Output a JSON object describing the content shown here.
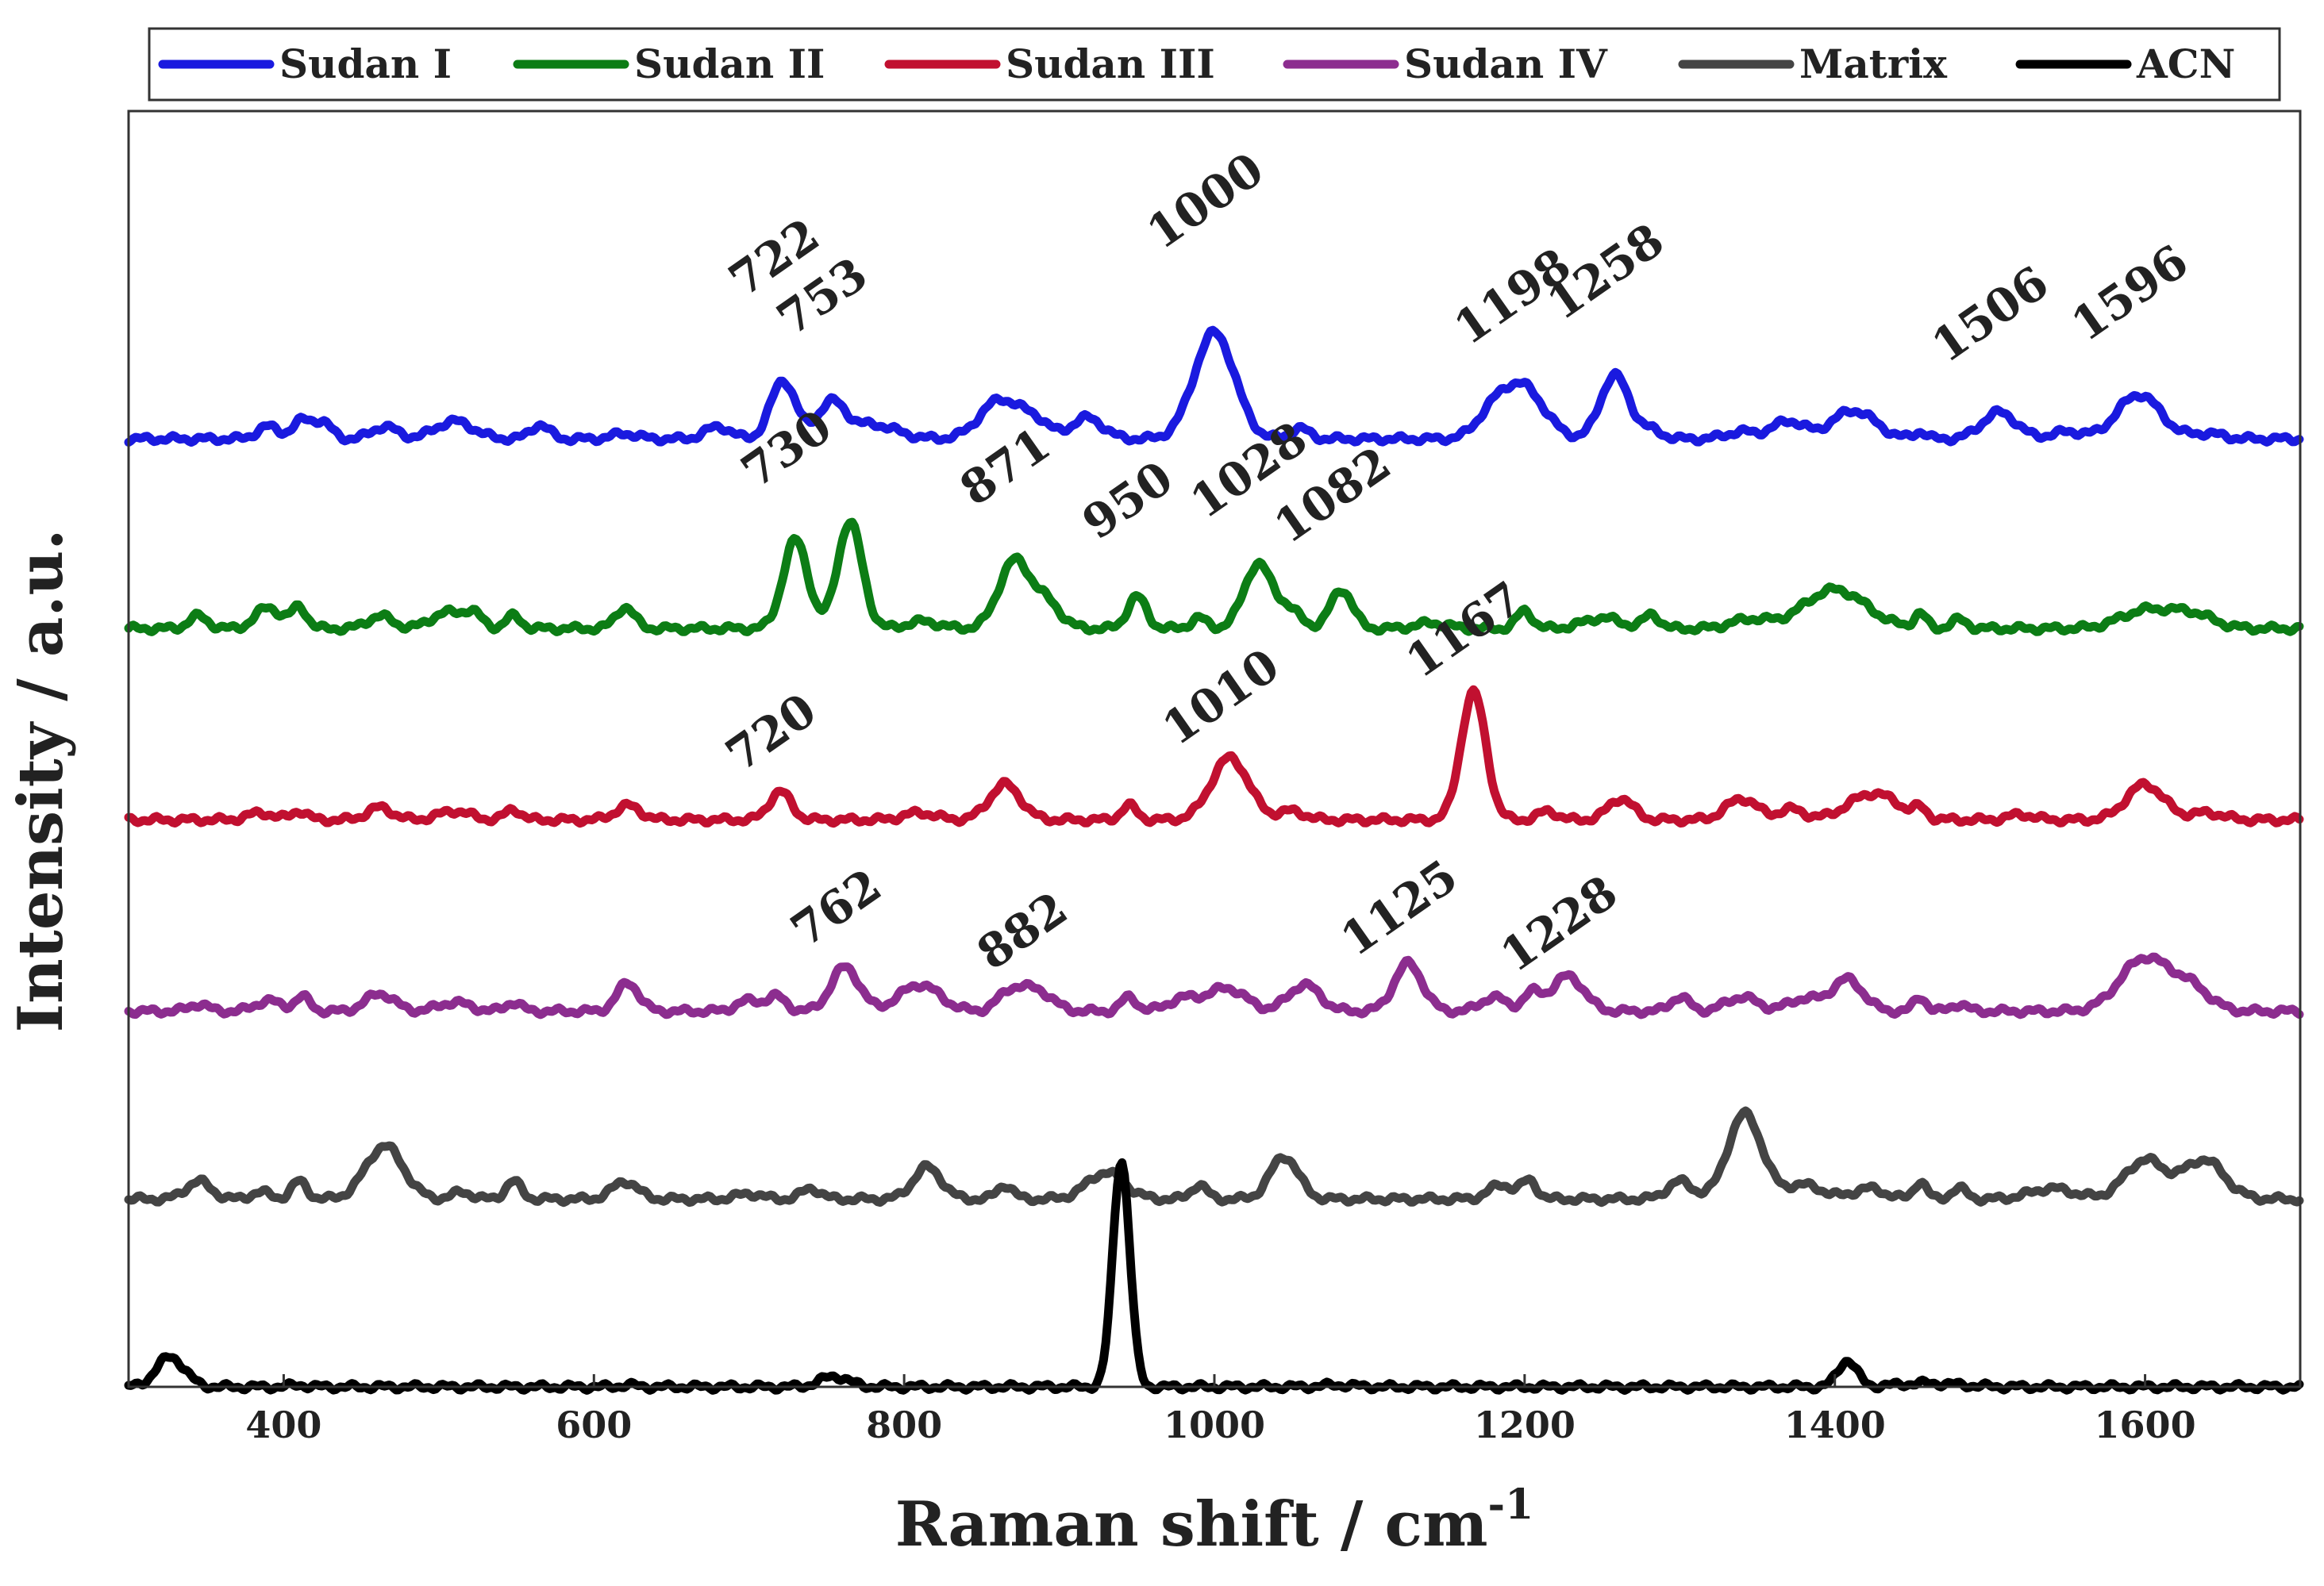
{
  "chart_data": {
    "type": "line",
    "title": "",
    "xlabel": "Raman shift / cm",
    "xlabel_superscript": "-1",
    "ylabel": "Intensity / a.u.",
    "xlim": [
      300,
      1700
    ],
    "ylim": [
      0,
      7.2
    ],
    "xticks": [
      400,
      600,
      800,
      1000,
      1200,
      1400,
      1600
    ],
    "grid": false,
    "legend_position": "top",
    "series": [
      {
        "name": "Sudan I",
        "color": "#1a1adf",
        "offset": 5.35,
        "peaks": [
          {
            "x": 390,
            "h": 0.07,
            "w": 7
          },
          {
            "x": 412,
            "h": 0.1,
            "w": 6
          },
          {
            "x": 425,
            "h": 0.09,
            "w": 6
          },
          {
            "x": 465,
            "h": 0.07,
            "w": 8
          },
          {
            "x": 510,
            "h": 0.1,
            "w": 12
          },
          {
            "x": 565,
            "h": 0.08,
            "w": 6
          },
          {
            "x": 620,
            "h": 0.03,
            "w": 8
          },
          {
            "x": 680,
            "h": 0.07,
            "w": 8
          },
          {
            "x": 722,
            "h": 0.33,
            "w": 8
          },
          {
            "x": 753,
            "h": 0.2,
            "w": 9
          },
          {
            "x": 780,
            "h": 0.08,
            "w": 15
          },
          {
            "x": 862,
            "h": 0.22,
            "w": 13
          },
          {
            "x": 885,
            "h": 0.09,
            "w": 9
          },
          {
            "x": 918,
            "h": 0.12,
            "w": 10
          },
          {
            "x": 1000,
            "h": 0.6,
            "w": 13
          },
          {
            "x": 1055,
            "h": 0.06,
            "w": 6
          },
          {
            "x": 1198,
            "h": 0.3,
            "w": 14
          },
          {
            "x": 1178,
            "h": 0.1,
            "w": 10
          },
          {
            "x": 1258,
            "h": 0.36,
            "w": 9
          },
          {
            "x": 1280,
            "h": 0.05,
            "w": 8
          },
          {
            "x": 1340,
            "h": 0.04,
            "w": 10
          },
          {
            "x": 1370,
            "h": 0.1,
            "w": 10
          },
          {
            "x": 1412,
            "h": 0.16,
            "w": 14
          },
          {
            "x": 1455,
            "h": 0.04,
            "w": 4
          },
          {
            "x": 1506,
            "h": 0.15,
            "w": 11
          },
          {
            "x": 1550,
            "h": 0.04,
            "w": 10
          },
          {
            "x": 1596,
            "h": 0.25,
            "w": 14
          },
          {
            "x": 1640,
            "h": 0.03,
            "w": 10
          }
        ],
        "labels": [
          {
            "text": "722",
            "x": 722,
            "y": 6.3
          },
          {
            "text": "753",
            "x": 753,
            "y": 6.08
          },
          {
            "text": "1000",
            "x": 1000,
            "y": 6.62
          },
          {
            "text": "1198",
            "x": 1198,
            "y": 6.08
          },
          {
            "text": "1258",
            "x": 1258,
            "y": 6.22
          },
          {
            "text": "1506",
            "x": 1506,
            "y": 5.98
          },
          {
            "text": "1596",
            "x": 1596,
            "y": 6.1
          }
        ]
      },
      {
        "name": "Sudan II",
        "color": "#0c7d15",
        "offset": 4.28,
        "peaks": [
          {
            "x": 345,
            "h": 0.07,
            "w": 6
          },
          {
            "x": 390,
            "h": 0.12,
            "w": 8
          },
          {
            "x": 410,
            "h": 0.12,
            "w": 5
          },
          {
            "x": 462,
            "h": 0.07,
            "w": 8
          },
          {
            "x": 505,
            "h": 0.09,
            "w": 10
          },
          {
            "x": 522,
            "h": 0.08,
            "w": 6
          },
          {
            "x": 548,
            "h": 0.07,
            "w": 5
          },
          {
            "x": 620,
            "h": 0.12,
            "w": 6
          },
          {
            "x": 730,
            "h": 0.5,
            "w": 8
          },
          {
            "x": 765,
            "h": 0.6,
            "w": 8
          },
          {
            "x": 812,
            "h": 0.04,
            "w": 10
          },
          {
            "x": 871,
            "h": 0.38,
            "w": 10
          },
          {
            "x": 892,
            "h": 0.14,
            "w": 9
          },
          {
            "x": 950,
            "h": 0.18,
            "w": 6
          },
          {
            "x": 990,
            "h": 0.06,
            "w": 5
          },
          {
            "x": 1028,
            "h": 0.36,
            "w": 9
          },
          {
            "x": 1048,
            "h": 0.1,
            "w": 8
          },
          {
            "x": 1082,
            "h": 0.22,
            "w": 7
          },
          {
            "x": 1140,
            "h": 0.03,
            "w": 10
          },
          {
            "x": 1200,
            "h": 0.1,
            "w": 5
          },
          {
            "x": 1250,
            "h": 0.06,
            "w": 12
          },
          {
            "x": 1282,
            "h": 0.08,
            "w": 5
          },
          {
            "x": 1345,
            "h": 0.05,
            "w": 12
          },
          {
            "x": 1400,
            "h": 0.22,
            "w": 20
          },
          {
            "x": 1455,
            "h": 0.08,
            "w": 4
          },
          {
            "x": 1480,
            "h": 0.05,
            "w": 5
          },
          {
            "x": 1600,
            "h": 0.1,
            "w": 16
          },
          {
            "x": 1630,
            "h": 0.08,
            "w": 14
          }
        ],
        "labels": [
          {
            "text": "730",
            "x": 730,
            "y": 5.22
          },
          {
            "text": "871",
            "x": 871,
            "y": 5.12
          },
          {
            "text": "950",
            "x": 950,
            "y": 4.93
          },
          {
            "text": "1028",
            "x": 1028,
            "y": 5.1
          },
          {
            "text": "1082",
            "x": 1082,
            "y": 4.96
          }
        ]
      },
      {
        "name": "Sudan III",
        "color": "#c11030",
        "offset": 3.2,
        "peaks": [
          {
            "x": 385,
            "h": 0.04,
            "w": 8
          },
          {
            "x": 410,
            "h": 0.05,
            "w": 5
          },
          {
            "x": 462,
            "h": 0.07,
            "w": 8
          },
          {
            "x": 510,
            "h": 0.05,
            "w": 10
          },
          {
            "x": 548,
            "h": 0.06,
            "w": 5
          },
          {
            "x": 622,
            "h": 0.08,
            "w": 8
          },
          {
            "x": 720,
            "h": 0.16,
            "w": 7
          },
          {
            "x": 810,
            "h": 0.04,
            "w": 10
          },
          {
            "x": 865,
            "h": 0.2,
            "w": 10
          },
          {
            "x": 945,
            "h": 0.08,
            "w": 5
          },
          {
            "x": 1010,
            "h": 0.35,
            "w": 12
          },
          {
            "x": 1050,
            "h": 0.05,
            "w": 8
          },
          {
            "x": 1167,
            "h": 0.72,
            "w": 8
          },
          {
            "x": 1215,
            "h": 0.05,
            "w": 6
          },
          {
            "x": 1262,
            "h": 0.12,
            "w": 8
          },
          {
            "x": 1340,
            "h": 0.12,
            "w": 10
          },
          {
            "x": 1372,
            "h": 0.06,
            "w": 8
          },
          {
            "x": 1425,
            "h": 0.15,
            "w": 16
          },
          {
            "x": 1455,
            "h": 0.05,
            "w": 4
          },
          {
            "x": 1520,
            "h": 0.03,
            "w": 8
          },
          {
            "x": 1600,
            "h": 0.2,
            "w": 12
          },
          {
            "x": 1640,
            "h": 0.04,
            "w": 10
          }
        ],
        "labels": [
          {
            "text": "720",
            "x": 720,
            "y": 3.62
          },
          {
            "text": "1010",
            "x": 1010,
            "y": 3.82
          },
          {
            "text": "1167",
            "x": 1167,
            "y": 4.2
          }
        ]
      },
      {
        "name": "Sudan IV",
        "color": "#8c2d8f",
        "offset": 2.12,
        "peaks": [
          {
            "x": 345,
            "h": 0.04,
            "w": 6
          },
          {
            "x": 390,
            "h": 0.06,
            "w": 8
          },
          {
            "x": 412,
            "h": 0.08,
            "w": 5
          },
          {
            "x": 462,
            "h": 0.1,
            "w": 9
          },
          {
            "x": 510,
            "h": 0.05,
            "w": 10
          },
          {
            "x": 548,
            "h": 0.05,
            "w": 5
          },
          {
            "x": 622,
            "h": 0.16,
            "w": 7
          },
          {
            "x": 700,
            "h": 0.06,
            "w": 8
          },
          {
            "x": 718,
            "h": 0.08,
            "w": 6
          },
          {
            "x": 762,
            "h": 0.25,
            "w": 9
          },
          {
            "x": 810,
            "h": 0.15,
            "w": 13
          },
          {
            "x": 868,
            "h": 0.1,
            "w": 8
          },
          {
            "x": 885,
            "h": 0.12,
            "w": 10
          },
          {
            "x": 945,
            "h": 0.08,
            "w": 5
          },
          {
            "x": 980,
            "h": 0.07,
            "w": 10
          },
          {
            "x": 1008,
            "h": 0.13,
            "w": 12
          },
          {
            "x": 1058,
            "h": 0.15,
            "w": 10
          },
          {
            "x": 1125,
            "h": 0.27,
            "w": 9
          },
          {
            "x": 1180,
            "h": 0.08,
            "w": 8
          },
          {
            "x": 1205,
            "h": 0.1,
            "w": 6
          },
          {
            "x": 1228,
            "h": 0.2,
            "w": 10
          },
          {
            "x": 1300,
            "h": 0.08,
            "w": 6
          },
          {
            "x": 1340,
            "h": 0.08,
            "w": 10
          },
          {
            "x": 1380,
            "h": 0.07,
            "w": 10
          },
          {
            "x": 1408,
            "h": 0.18,
            "w": 10
          },
          {
            "x": 1455,
            "h": 0.08,
            "w": 4
          },
          {
            "x": 1480,
            "h": 0.04,
            "w": 5
          },
          {
            "x": 1600,
            "h": 0.3,
            "w": 16
          },
          {
            "x": 1630,
            "h": 0.12,
            "w": 12
          }
        ],
        "labels": [
          {
            "text": "762",
            "x": 762,
            "y": 2.63
          },
          {
            "text": "882",
            "x": 882,
            "y": 2.5
          },
          {
            "text": "1125",
            "x": 1125,
            "y": 2.63
          },
          {
            "text": "1228",
            "x": 1228,
            "y": 2.54
          }
        ]
      },
      {
        "name": "Matrix",
        "color": "#444444",
        "offset": 1.06,
        "peaks": [
          {
            "x": 345,
            "h": 0.1,
            "w": 8
          },
          {
            "x": 385,
            "h": 0.04,
            "w": 6
          },
          {
            "x": 410,
            "h": 0.1,
            "w": 5
          },
          {
            "x": 465,
            "h": 0.3,
            "w": 12
          },
          {
            "x": 515,
            "h": 0.04,
            "w": 6
          },
          {
            "x": 548,
            "h": 0.1,
            "w": 5
          },
          {
            "x": 620,
            "h": 0.1,
            "w": 8
          },
          {
            "x": 700,
            "h": 0.03,
            "w": 8
          },
          {
            "x": 740,
            "h": 0.06,
            "w": 6
          },
          {
            "x": 815,
            "h": 0.18,
            "w": 9
          },
          {
            "x": 865,
            "h": 0.08,
            "w": 5
          },
          {
            "x": 930,
            "h": 0.15,
            "w": 12
          },
          {
            "x": 990,
            "h": 0.08,
            "w": 5
          },
          {
            "x": 1045,
            "h": 0.24,
            "w": 9
          },
          {
            "x": 1185,
            "h": 0.08,
            "w": 8
          },
          {
            "x": 1203,
            "h": 0.1,
            "w": 5
          },
          {
            "x": 1300,
            "h": 0.1,
            "w": 8
          },
          {
            "x": 1342,
            "h": 0.48,
            "w": 11
          },
          {
            "x": 1380,
            "h": 0.08,
            "w": 12
          },
          {
            "x": 1422,
            "h": 0.06,
            "w": 10
          },
          {
            "x": 1455,
            "h": 0.1,
            "w": 4
          },
          {
            "x": 1480,
            "h": 0.06,
            "w": 5
          },
          {
            "x": 1540,
            "h": 0.06,
            "w": 14
          },
          {
            "x": 1600,
            "h": 0.22,
            "w": 13
          },
          {
            "x": 1638,
            "h": 0.22,
            "w": 13
          }
        ],
        "labels": []
      },
      {
        "name": "ACN",
        "color": "#000000",
        "offset": 0.0,
        "peaks": [
          {
            "x": 327,
            "h": 0.17,
            "w": 9
          },
          {
            "x": 410,
            "h": 0.01,
            "w": 5
          },
          {
            "x": 622,
            "h": 0.01,
            "w": 5
          },
          {
            "x": 755,
            "h": 0.06,
            "w": 9
          },
          {
            "x": 940,
            "h": 1.28,
            "w": 5.5
          },
          {
            "x": 1080,
            "h": 0.01,
            "w": 10
          },
          {
            "x": 1408,
            "h": 0.15,
            "w": 6
          },
          {
            "x": 1460,
            "h": 0.02,
            "w": 20
          }
        ],
        "labels": []
      }
    ]
  }
}
